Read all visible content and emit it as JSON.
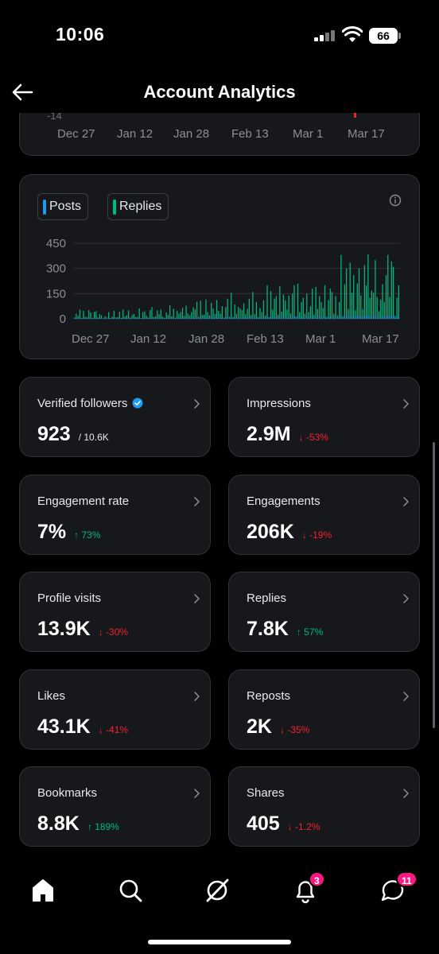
{
  "status_bar": {
    "time": "10:06",
    "battery": "66"
  },
  "header": {
    "title": "Account Analytics"
  },
  "top_chart": {
    "y_tick_partial": "-14",
    "x_ticks": [
      "Dec 27",
      "Jan 12",
      "Jan 28",
      "Feb 13",
      "Mar 1",
      "Mar 17"
    ]
  },
  "chart_data": {
    "type": "bar",
    "legend": [
      {
        "name": "Posts",
        "color": "#1d9bf0"
      },
      {
        "name": "Replies",
        "color": "#00ba7c"
      }
    ],
    "y_ticks": [
      "450",
      "300",
      "150",
      "0"
    ],
    "ylim": [
      0,
      450
    ],
    "x_ticks": [
      "Dec 27",
      "Jan 12",
      "Jan 28",
      "Feb 13",
      "Mar 1",
      "Mar 17"
    ],
    "series": [
      {
        "name": "Replies",
        "color": "#00ba7c",
        "values": [
          8,
          30,
          18,
          55,
          5,
          48,
          12,
          10,
          52,
          38,
          6,
          42,
          45,
          8,
          28,
          20,
          3,
          15,
          8,
          40,
          5,
          12,
          48,
          9,
          10,
          42,
          6,
          55,
          14,
          20,
          50,
          8,
          22,
          30,
          10,
          12,
          62,
          4,
          40,
          45,
          18,
          8,
          52,
          70,
          10,
          15,
          50,
          28,
          55,
          12,
          6,
          38,
          22,
          80,
          14,
          60,
          8,
          48,
          30,
          40,
          65,
          18,
          78,
          32,
          20,
          40,
          70,
          56,
          102,
          12,
          108,
          22,
          25,
          115,
          40,
          20,
          95,
          60,
          28,
          112,
          48,
          30,
          75,
          8,
          70,
          120,
          12,
          155,
          10,
          85,
          30,
          70,
          60,
          52,
          92,
          28,
          60,
          120,
          22,
          160,
          28,
          100,
          10,
          65,
          40,
          110,
          20,
          200,
          10,
          165,
          55,
          120,
          135,
          25,
          195,
          42,
          145,
          110,
          55,
          138,
          32,
          150,
          200,
          15,
          210,
          40,
          100,
          125,
          30,
          150,
          40,
          75,
          180,
          25,
          190,
          58,
          135,
          100,
          65,
          200,
          12,
          112,
          180,
          160,
          30,
          135,
          20,
          100,
          380,
          15,
          205,
          300,
          58,
          335,
          155,
          260,
          50,
          210,
          300,
          140,
          58,
          320,
          198,
          385,
          125,
          168,
          155,
          350,
          130,
          45,
          115,
          205,
          100,
          260,
          380,
          130,
          342,
          310,
          18,
          125,
          200
        ]
      },
      {
        "name": "Posts",
        "color": "#1d9bf0",
        "values": [
          4,
          6,
          3,
          8,
          2,
          5,
          4,
          3,
          6,
          4,
          2,
          5,
          6,
          3,
          4,
          3,
          2,
          4,
          3,
          5,
          2,
          3,
          6,
          2,
          3,
          5,
          2,
          6,
          3,
          4,
          5,
          2,
          3,
          4,
          2,
          3,
          6,
          2,
          5,
          5,
          3,
          2,
          6,
          7,
          2,
          3,
          5,
          4,
          6,
          3,
          2,
          5,
          3,
          8,
          3,
          6,
          2,
          5,
          4,
          5,
          7,
          3,
          8,
          4,
          3,
          5,
          7,
          6,
          9,
          2,
          9,
          3,
          3,
          10,
          5,
          3,
          9,
          6,
          4,
          10,
          5,
          4,
          7,
          2,
          7,
          10,
          2,
          12,
          2,
          8,
          4,
          7,
          6,
          5,
          8,
          3,
          6,
          10,
          3,
          12,
          3,
          9,
          2,
          6,
          5,
          9,
          3,
          14,
          2,
          12,
          6,
          10,
          11,
          3,
          14,
          5,
          12,
          9,
          6,
          11,
          4,
          12,
          14,
          2,
          15,
          5,
          9,
          10,
          4,
          12,
          5,
          7,
          13,
          3,
          14,
          6,
          11,
          9,
          6,
          14,
          2,
          10,
          13,
          12,
          4,
          11,
          3,
          9,
          20,
          2,
          15,
          18,
          6,
          19,
          12,
          16,
          6,
          15,
          18,
          11,
          6,
          19,
          14,
          20,
          10,
          13,
          12,
          19,
          10,
          5,
          9,
          15,
          9,
          16,
          20,
          10,
          19,
          18,
          3,
          10,
          15
        ]
      }
    ]
  },
  "metrics": [
    {
      "label": "Verified followers",
      "value": "923",
      "sub": "/ 10.6K",
      "verified": true
    },
    {
      "label": "Impressions",
      "value": "2.9M",
      "delta": "-53%",
      "dir": "down"
    },
    {
      "label": "Engagement rate",
      "value": "7%",
      "delta": "73%",
      "dir": "up"
    },
    {
      "label": "Engagements",
      "value": "206K",
      "delta": "-19%",
      "dir": "down"
    },
    {
      "label": "Profile visits",
      "value": "13.9K",
      "delta": "-30%",
      "dir": "down"
    },
    {
      "label": "Replies",
      "value": "7.8K",
      "delta": "57%",
      "dir": "up"
    },
    {
      "label": "Likes",
      "value": "43.1K",
      "delta": "-41%",
      "dir": "down"
    },
    {
      "label": "Reposts",
      "value": "2K",
      "delta": "-35%",
      "dir": "down"
    },
    {
      "label": "Bookmarks",
      "value": "8.8K",
      "delta": "189%",
      "dir": "up"
    },
    {
      "label": "Shares",
      "value": "405",
      "delta": "-1.2%",
      "dir": "down"
    }
  ],
  "bottom_nav": {
    "items": [
      {
        "name": "home"
      },
      {
        "name": "search"
      },
      {
        "name": "grok"
      },
      {
        "name": "notifications",
        "badge": "3"
      },
      {
        "name": "messages",
        "badge": "11"
      }
    ]
  }
}
